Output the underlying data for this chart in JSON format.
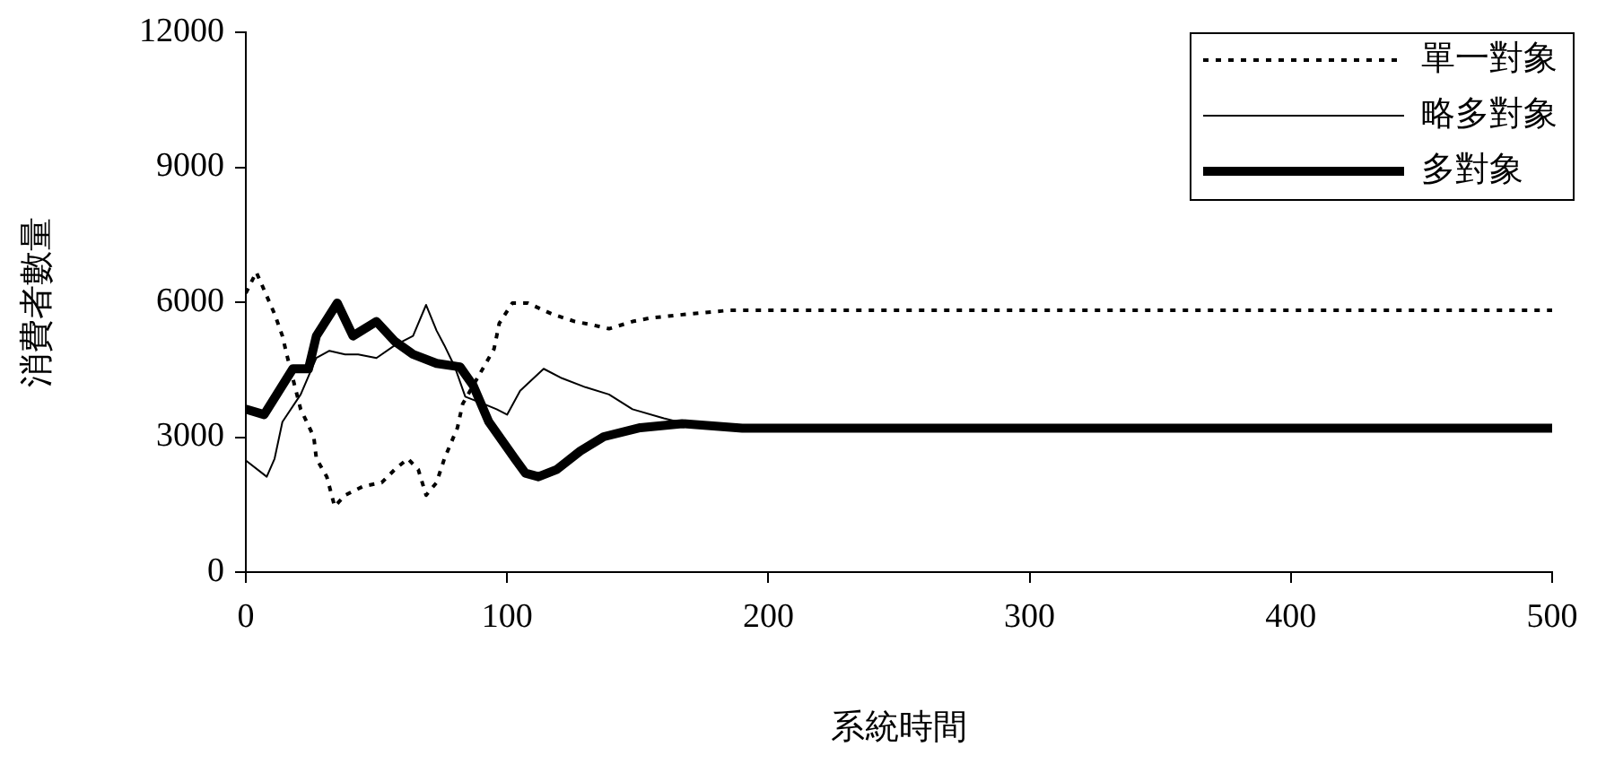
{
  "chart_data": {
    "type": "line",
    "xlabel": "系統時間",
    "ylabel": "消費者數量",
    "xlim": [
      0,
      500
    ],
    "xticks": [
      0,
      100,
      200,
      300,
      400,
      500
    ],
    "ylim": [
      0,
      12000
    ],
    "yticks": [
      0,
      3000,
      6000,
      9000,
      12000
    ],
    "grid": false,
    "legend": "top right",
    "marker": "none",
    "series": [
      {
        "name": "單一對象",
        "color": "#000000",
        "line_style": "dotted",
        "x": [
          0,
          4,
          11,
          14,
          16,
          21,
          26,
          27,
          31,
          34,
          38,
          45,
          52,
          57,
          62,
          66,
          69,
          73,
          76,
          81,
          83,
          95,
          97,
          102,
          108,
          117,
          126,
          133,
          139,
          148,
          155,
          170,
          185,
          300,
          400,
          500
        ],
        "values": [
          6200,
          6670,
          5740,
          5250,
          4760,
          3620,
          3010,
          2520,
          2120,
          1460,
          1710,
          1910,
          1990,
          2280,
          2520,
          2280,
          1710,
          1990,
          2520,
          3210,
          3740,
          4960,
          5530,
          5980,
          5980,
          5740,
          5570,
          5490,
          5410,
          5570,
          5650,
          5740,
          5820,
          5820,
          5820,
          5820
        ]
      },
      {
        "name": "略多對象",
        "color": "#000000",
        "line_style": "solid",
        "x": [
          0,
          8,
          11,
          14,
          21,
          27,
          32,
          38,
          43,
          50,
          57,
          64,
          69,
          73,
          76,
          80,
          84,
          91,
          96,
          100,
          105,
          114,
          121,
          130,
          139,
          148,
          160,
          175,
          300,
          400,
          500
        ],
        "values": [
          2480,
          2120,
          2520,
          3340,
          3950,
          4760,
          4920,
          4840,
          4840,
          4760,
          5040,
          5250,
          5940,
          5370,
          5040,
          4560,
          3900,
          3740,
          3620,
          3500,
          4030,
          4520,
          4310,
          4110,
          3950,
          3620,
          3420,
          3200,
          3200,
          3200,
          3200
        ]
      },
      {
        "name": "多對象",
        "color": "#000000",
        "line_style": "solid",
        "x": [
          0,
          7,
          18,
          24,
          27,
          35,
          41,
          50,
          57,
          64,
          73,
          82,
          87,
          93,
          103,
          107,
          112,
          119,
          128,
          137,
          151,
          167,
          190,
          300,
          400,
          500
        ],
        "values": [
          3620,
          3500,
          4520,
          4520,
          5250,
          5980,
          5250,
          5570,
          5130,
          4840,
          4640,
          4560,
          4150,
          3340,
          2520,
          2200,
          2120,
          2280,
          2690,
          3010,
          3210,
          3300,
          3200,
          3200,
          3200,
          3200
        ]
      }
    ]
  }
}
